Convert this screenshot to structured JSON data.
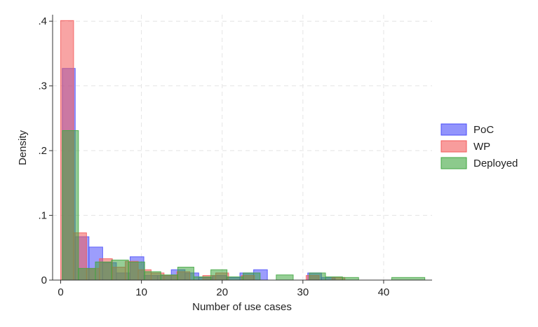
{
  "chart_data": {
    "type": "bar",
    "subtype": "overlaid-histogram",
    "title": "",
    "xlabel": "Number of use cases",
    "ylabel": "Density",
    "xlim": [
      -1,
      46
    ],
    "ylim": [
      0,
      0.41
    ],
    "x_ticks": [
      0,
      10,
      20,
      30,
      40
    ],
    "x_tick_labels": [
      "0",
      "10",
      "20",
      "30",
      "40"
    ],
    "y_ticks": [
      0,
      0.1,
      0.2,
      0.3,
      0.4
    ],
    "y_tick_labels": [
      "0",
      ".1",
      ".2",
      ".3",
      ".4"
    ],
    "grid": true,
    "legend_position": "right",
    "series": [
      {
        "name": "PoC",
        "color": "#4a4dfa",
        "bins": [
          {
            "x0": 0.2,
            "x1": 1.8,
            "y": 0.327
          },
          {
            "x0": 1.8,
            "x1": 3.5,
            "y": 0.067
          },
          {
            "x0": 3.5,
            "x1": 5.2,
            "y": 0.051
          },
          {
            "x0": 5.2,
            "x1": 6.9,
            "y": 0.027
          },
          {
            "x0": 6.9,
            "x1": 8.6,
            "y": 0.011
          },
          {
            "x0": 8.6,
            "x1": 10.3,
            "y": 0.036
          },
          {
            "x0": 10.3,
            "x1": 12.0,
            "y": 0.007
          },
          {
            "x0": 12.0,
            "x1": 13.7,
            "y": 0.007
          },
          {
            "x0": 13.7,
            "x1": 15.4,
            "y": 0.016
          },
          {
            "x0": 15.4,
            "x1": 17.1,
            "y": 0.011
          },
          {
            "x0": 17.1,
            "x1": 18.8,
            "y": 0.004
          },
          {
            "x0": 18.8,
            "x1": 20.5,
            "y": 0.007
          },
          {
            "x0": 20.5,
            "x1": 22.2,
            "y": 0.004
          },
          {
            "x0": 22.2,
            "x1": 23.9,
            "y": 0.011
          },
          {
            "x0": 23.9,
            "x1": 25.6,
            "y": 0.016
          },
          {
            "x0": 30.6,
            "x1": 32.3,
            "y": 0.011
          },
          {
            "x0": 32.3,
            "x1": 34.0,
            "y": 0.004
          }
        ]
      },
      {
        "name": "WP",
        "color": "#f35a5a",
        "bins": [
          {
            "x0": 0.0,
            "x1": 1.6,
            "y": 0.401
          },
          {
            "x0": 1.6,
            "x1": 3.2,
            "y": 0.073
          },
          {
            "x0": 3.2,
            "x1": 4.8,
            "y": 0.018
          },
          {
            "x0": 4.8,
            "x1": 6.4,
            "y": 0.033
          },
          {
            "x0": 6.4,
            "x1": 8.0,
            "y": 0.02
          },
          {
            "x0": 8.0,
            "x1": 9.6,
            "y": 0.029
          },
          {
            "x0": 9.6,
            "x1": 11.2,
            "y": 0.016
          },
          {
            "x0": 11.2,
            "x1": 12.8,
            "y": 0.011
          },
          {
            "x0": 12.8,
            "x1": 14.4,
            "y": 0.007
          },
          {
            "x0": 14.4,
            "x1": 16.0,
            "y": 0.013
          },
          {
            "x0": 17.6,
            "x1": 19.2,
            "y": 0.007
          },
          {
            "x0": 19.2,
            "x1": 20.8,
            "y": 0.011
          },
          {
            "x0": 22.4,
            "x1": 24.0,
            "y": 0.007
          },
          {
            "x0": 30.4,
            "x1": 32.0,
            "y": 0.007
          },
          {
            "x0": 33.6,
            "x1": 35.2,
            "y": 0.004
          }
        ]
      },
      {
        "name": "Deployed",
        "color": "#3fa63f",
        "bins": [
          {
            "x0": 0.2,
            "x1": 2.2,
            "y": 0.231
          },
          {
            "x0": 2.2,
            "x1": 4.3,
            "y": 0.018
          },
          {
            "x0": 4.3,
            "x1": 6.3,
            "y": 0.028
          },
          {
            "x0": 6.3,
            "x1": 8.4,
            "y": 0.031
          },
          {
            "x0": 8.4,
            "x1": 10.4,
            "y": 0.028
          },
          {
            "x0": 10.4,
            "x1": 12.4,
            "y": 0.013
          },
          {
            "x0": 12.4,
            "x1": 14.5,
            "y": 0.008
          },
          {
            "x0": 14.5,
            "x1": 16.5,
            "y": 0.02
          },
          {
            "x0": 16.5,
            "x1": 18.6,
            "y": 0.005
          },
          {
            "x0": 18.6,
            "x1": 20.6,
            "y": 0.016
          },
          {
            "x0": 20.6,
            "x1": 22.6,
            "y": 0.005
          },
          {
            "x0": 22.6,
            "x1": 24.7,
            "y": 0.011
          },
          {
            "x0": 26.7,
            "x1": 28.8,
            "y": 0.008
          },
          {
            "x0": 30.8,
            "x1": 32.8,
            "y": 0.011
          },
          {
            "x0": 32.8,
            "x1": 34.9,
            "y": 0.005
          },
          {
            "x0": 34.9,
            "x1": 36.9,
            "y": 0.004
          },
          {
            "x0": 41.0,
            "x1": 45.1,
            "y": 0.004
          }
        ]
      }
    ]
  }
}
